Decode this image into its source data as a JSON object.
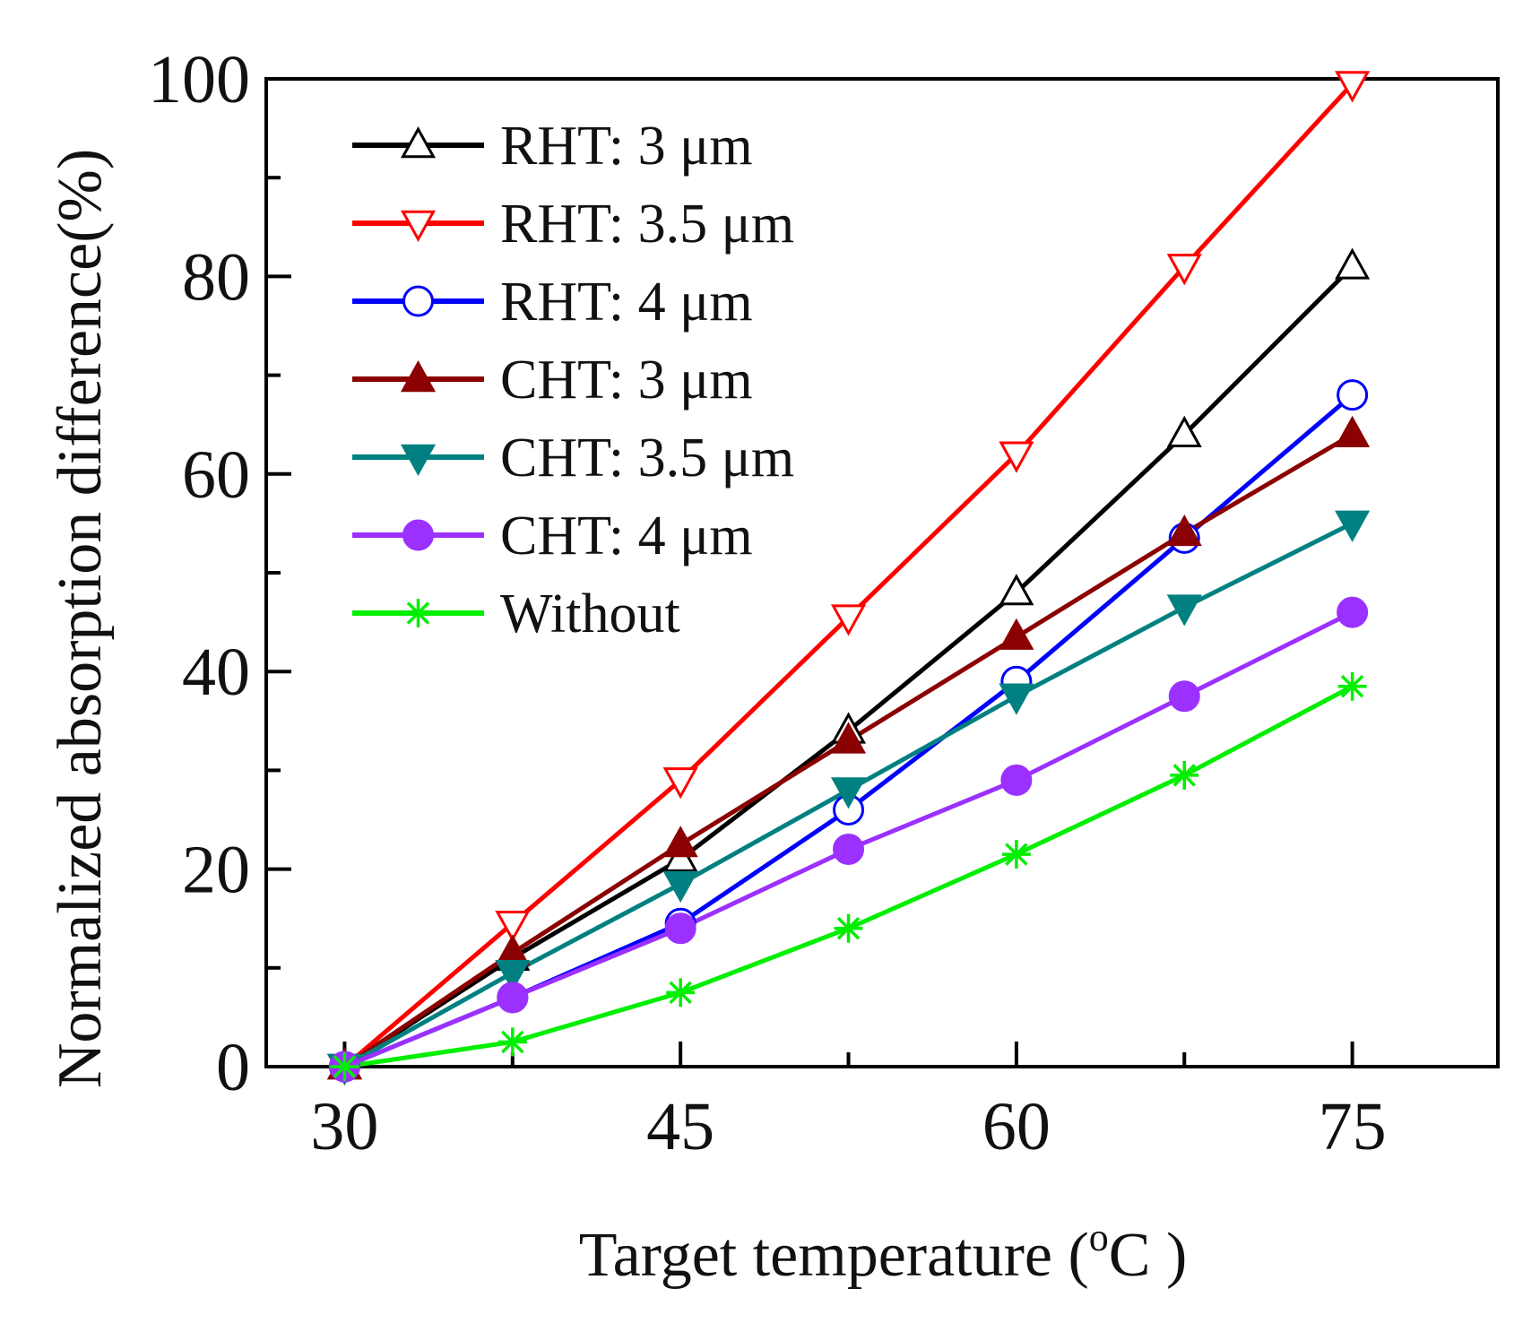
{
  "chart_data": {
    "type": "line",
    "title": "",
    "xlabel": "Target temperature (",
    "xlabel_sup": "o",
    "xlabel_unit": "C )",
    "ylabel": "Normalized absorption difference(%)",
    "xlim": [
      26.5,
      81.5
    ],
    "ylim": [
      0,
      100
    ],
    "xticks": [
      30,
      45,
      60,
      75
    ],
    "xticks_minor": [
      37.5,
      52.5,
      67.5
    ],
    "yticks": [
      0,
      20,
      40,
      60,
      80,
      100
    ],
    "yticks_minor": [
      10,
      30,
      50,
      70,
      90
    ],
    "legend_position": "top-left",
    "x": [
      30,
      37.5,
      45,
      52.5,
      60,
      67.5,
      75
    ],
    "series": [
      {
        "name": "RHT: 3 μm",
        "color": "#000000",
        "marker": "triangle-up-open",
        "values": [
          0,
          11,
          21,
          34,
          48,
          64,
          81
        ]
      },
      {
        "name": "RHT: 3.5 μm",
        "color": "#ff0000",
        "marker": "triangle-down-open",
        "values": [
          0,
          14.5,
          29,
          45.5,
          62,
          81,
          99.5
        ]
      },
      {
        "name": "RHT: 4 μm",
        "color": "#0000ff",
        "marker": "circle-open",
        "values": [
          0,
          7,
          14.5,
          26,
          39,
          53.5,
          68
        ]
      },
      {
        "name": "CHT: 3 μm",
        "color": "#8b0000",
        "marker": "triangle-up-filled",
        "values": [
          0,
          11.5,
          22.5,
          33,
          43.5,
          54,
          64
        ]
      },
      {
        "name": "CHT: 3.5 μm",
        "color": "#008080",
        "marker": "triangle-down-filled",
        "values": [
          0,
          9.5,
          18.5,
          28,
          37.5,
          46.5,
          55
        ]
      },
      {
        "name": "CHT: 4 μm",
        "color": "#9b30ff",
        "marker": "circle-filled",
        "values": [
          0,
          7,
          14,
          22,
          29,
          37.5,
          46
        ]
      },
      {
        "name": "Without",
        "color": "#00ee00",
        "marker": "asterisk",
        "values": [
          0,
          2.5,
          7.5,
          14,
          21.5,
          29.5,
          38.5
        ]
      }
    ]
  }
}
